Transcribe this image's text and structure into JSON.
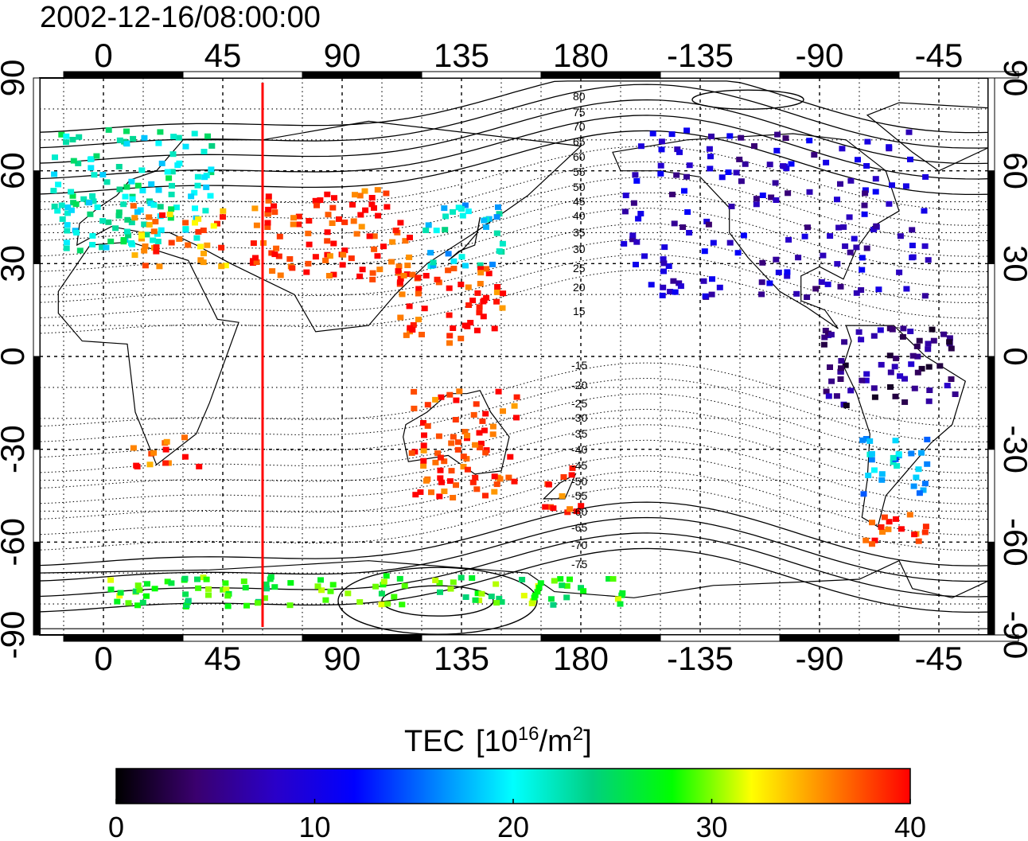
{
  "timestamp": "2002-12-16/08:00:00",
  "map": {
    "lon_ticks": [
      "0",
      "45",
      "90",
      "135",
      "180",
      "-135",
      "-90",
      "-45"
    ],
    "lat_ticks": [
      "90",
      "60",
      "30",
      "0",
      "-30",
      "-60",
      "-90"
    ],
    "marker_meridian_lon": 60,
    "marker_color": "#ff0000",
    "contour_labels_north": [
      "80",
      "75",
      "70",
      "65",
      "60",
      "55",
      "50",
      "45",
      "40",
      "35",
      "30",
      "25",
      "20",
      "15"
    ],
    "contour_labels_south": [
      "-15",
      "-20",
      "-25",
      "-30",
      "-35",
      "-40",
      "-45",
      "-50",
      "-55",
      "-60",
      "-65",
      "-70",
      "-75"
    ]
  },
  "colorbar": {
    "title": "TEC",
    "unit_open": "[10",
    "unit_exp": "16",
    "unit_mid": "/m",
    "unit_exp2": "2",
    "unit_close": "]",
    "range": [
      0,
      40
    ],
    "tick_labels": [
      "0",
      "10",
      "20",
      "30",
      "40"
    ],
    "colors": [
      "#000000",
      "#3a006e",
      "#2a00c8",
      "#0000ff",
      "#0080ff",
      "#00ffff",
      "#00d080",
      "#00ff00",
      "#ffff00",
      "#ff8000",
      "#ff0000"
    ]
  },
  "chart_data": {
    "type": "heatmap",
    "title": "2002-12-16/08:00:00",
    "x_range_lon": [
      -25,
      340
    ],
    "y_range_lat": [
      -90,
      90
    ],
    "value_range": [
      0,
      40
    ],
    "value_label": "TEC [10^16/m^2]",
    "regions": [
      {
        "lon": [
          -20,
          40
        ],
        "lat": [
          35,
          75
        ],
        "tec": 22
      },
      {
        "lon": [
          10,
          45
        ],
        "lat": [
          30,
          50
        ],
        "tec": 36
      },
      {
        "lon": [
          55,
          115
        ],
        "lat": [
          25,
          55
        ],
        "tec": 39
      },
      {
        "lon": [
          120,
          150
        ],
        "lat": [
          30,
          50
        ],
        "tec": 20
      },
      {
        "lon": [
          110,
          150
        ],
        "lat": [
          5,
          30
        ],
        "tec": 39
      },
      {
        "lon": [
          115,
          155
        ],
        "lat": [
          -45,
          -10
        ],
        "tec": 39
      },
      {
        "lon": [
          165,
          180
        ],
        "lat": [
          -50,
          -35
        ],
        "tec": 39
      },
      {
        "lon": [
          10,
          35
        ],
        "lat": [
          -35,
          -25
        ],
        "tec": 38
      },
      {
        "lon": [
          195,
          310
        ],
        "lat": [
          20,
          75
        ],
        "tec": 8
      },
      {
        "lon": [
          270,
          320
        ],
        "lat": [
          -15,
          10
        ],
        "tec": 5
      },
      {
        "lon": [
          285,
          310
        ],
        "lat": [
          -45,
          -25
        ],
        "tec": 18
      },
      {
        "lon": [
          285,
          310
        ],
        "lat": [
          -62,
          -50
        ],
        "tec": 39
      },
      {
        "lon": [
          0,
          200
        ],
        "lat": [
          -80,
          -70
        ],
        "tec": 28
      }
    ]
  }
}
